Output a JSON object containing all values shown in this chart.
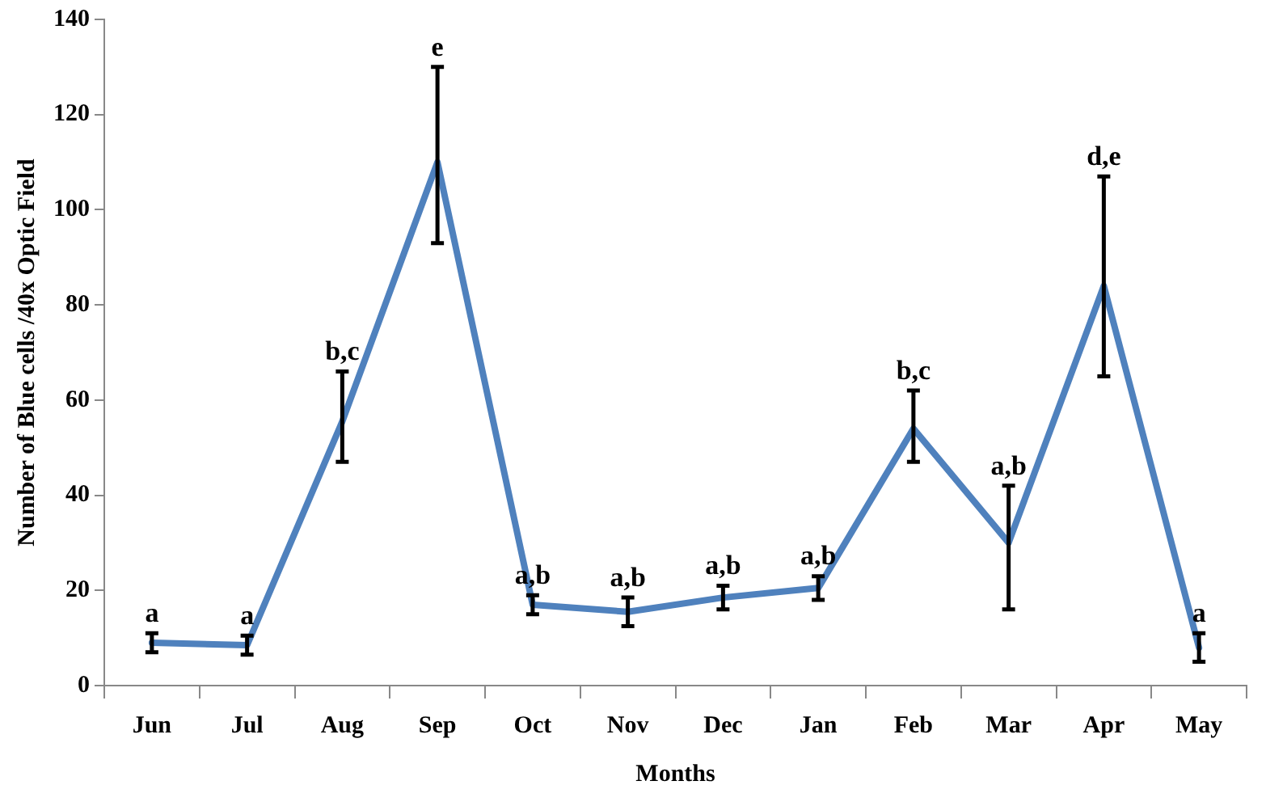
{
  "chart_data": {
    "type": "line",
    "xlabel": "Months",
    "ylabel": "Number of Blue cells /40x Optic Field",
    "categories": [
      "Jun",
      "Jul",
      "Aug",
      "Sep",
      "Oct",
      "Nov",
      "Dec",
      "Jan",
      "Feb",
      "Mar",
      "Apr",
      "May"
    ],
    "series": [
      {
        "color": "#4f81bd",
        "values": [
          9,
          8.5,
          55.5,
          110,
          17,
          15.5,
          18.5,
          20.5,
          54,
          30,
          84,
          8
        ],
        "errors": [
          2,
          2,
          [
            47,
            66
          ],
          [
            93,
            130
          ],
          2,
          3,
          2.5,
          2.5,
          [
            47,
            62
          ],
          [
            16,
            42
          ],
          [
            65,
            107
          ],
          3
        ]
      }
    ],
    "annotations": [
      {
        "text": "a",
        "x": "Jun",
        "y": 11
      },
      {
        "text": "a",
        "x": "Jul",
        "y": 10.5
      },
      {
        "text": "b,c",
        "x": "Aug",
        "y": 66
      },
      {
        "text": "e",
        "x": "Sep",
        "y": 130
      },
      {
        "text": "a,b",
        "x": "Oct",
        "y": 19
      },
      {
        "text": "a,b",
        "x": "Nov",
        "y": 18.5
      },
      {
        "text": "a,b",
        "x": "Dec",
        "y": 21
      },
      {
        "text": "a,b",
        "x": "Jan",
        "y": 23
      },
      {
        "text": "b,c",
        "x": "Feb",
        "y": 62
      },
      {
        "text": "a,b",
        "x": "Mar",
        "y": 42
      },
      {
        "text": "d,e",
        "x": "Apr",
        "y": 107
      },
      {
        "text": "a",
        "x": "May",
        "y": 11
      }
    ],
    "ylim": [
      0,
      140
    ],
    "yticks": [
      0,
      20,
      40,
      60,
      80,
      100,
      120,
      140
    ],
    "grid": false,
    "legend": false,
    "marker": "none",
    "line_style": "solid"
  }
}
